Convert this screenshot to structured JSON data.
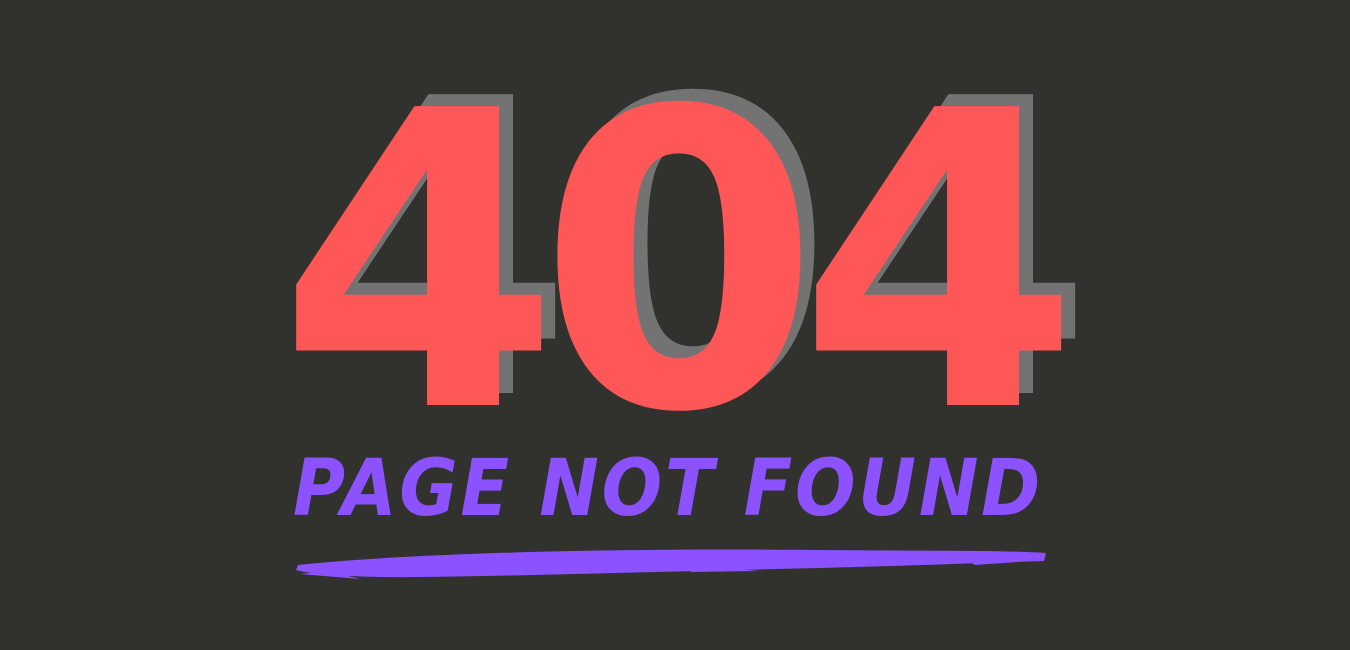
{
  "error_page": {
    "code": "404",
    "message": "PAGE NOT FOUND"
  },
  "colors": {
    "background": "#31312e",
    "code_fill": "#ff5757",
    "code_shadow": "#737373",
    "message_color": "#8c52ff",
    "underline_color": "#8c52ff"
  }
}
